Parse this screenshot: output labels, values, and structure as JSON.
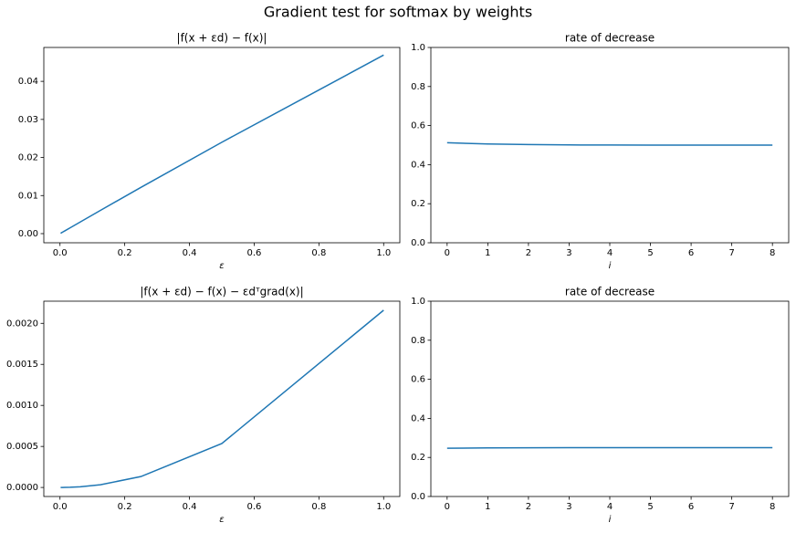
{
  "title": "Gradient test for softmax by weights",
  "chart_data": [
    {
      "type": "line",
      "title": "|f(x + εd) − f(x)|",
      "xlabel": "ε",
      "color": "#1f77b4",
      "x": [
        1,
        0.5,
        0.25,
        0.125,
        0.0625,
        0.03125,
        0.015625,
        0.0078125,
        0.00390625,
        0.001953125
      ],
      "values": [
        0.0469,
        0.024,
        0.01215,
        0.00611,
        0.00306,
        0.00153,
        0.000766,
        0.000383,
        0.000191,
        9.57e-05
      ],
      "xlim": [
        -0.05,
        1.05
      ],
      "xticks": [
        {
          "value": 0,
          "label": "0.0"
        },
        {
          "value": 0.2,
          "label": "0.2"
        },
        {
          "value": 0.4,
          "label": "0.4"
        },
        {
          "value": 0.6,
          "label": "0.6"
        },
        {
          "value": 0.8,
          "label": "0.8"
        },
        {
          "value": 1,
          "label": "1.0"
        }
      ],
      "ylim": [
        -0.0024,
        0.0489
      ],
      "yticks": [
        {
          "value": 0,
          "label": "0.00"
        },
        {
          "value": 0.01,
          "label": "0.01"
        },
        {
          "value": 0.02,
          "label": "0.02"
        },
        {
          "value": 0.03,
          "label": "0.03"
        },
        {
          "value": 0.04,
          "label": "0.04"
        }
      ]
    },
    {
      "type": "line",
      "title": "rate of decrease",
      "xlabel": "i",
      "color": "#1f77b4",
      "x": [
        0,
        1,
        2,
        3,
        4,
        5,
        6,
        7,
        8
      ],
      "values": [
        0.512,
        0.506,
        0.503,
        0.501,
        0.5005,
        0.5,
        0.5,
        0.5,
        0.5
      ],
      "xlim": [
        -0.4,
        8.4
      ],
      "xticks": [
        0,
        1,
        2,
        3,
        4,
        5,
        6,
        7,
        8
      ],
      "ylim": [
        0,
        1
      ],
      "yticks": [
        {
          "value": 0,
          "label": "0.0"
        },
        {
          "value": 0.2,
          "label": "0.2"
        },
        {
          "value": 0.4,
          "label": "0.4"
        },
        {
          "value": 0.6,
          "label": "0.6"
        },
        {
          "value": 0.8,
          "label": "0.8"
        },
        {
          "value": 1,
          "label": "1.0"
        }
      ]
    },
    {
      "type": "line",
      "title": "|f(x + εd) − f(x) − εdᵀgrad(x)|",
      "xlabel": "ε",
      "color": "#1f77b4",
      "x": [
        1,
        0.5,
        0.25,
        0.125,
        0.0625,
        0.03125,
        0.015625,
        0.0078125,
        0.00390625,
        0.001953125
      ],
      "values": [
        0.00216,
        0.000535,
        0.000133,
        3.32e-05,
        8.3e-06,
        2.1e-06,
        5.2e-07,
        1.3e-07,
        3.2e-08,
        8e-09
      ],
      "xlim": [
        -0.05,
        1.05
      ],
      "xticks": [
        {
          "value": 0,
          "label": "0.0"
        },
        {
          "value": 0.2,
          "label": "0.2"
        },
        {
          "value": 0.4,
          "label": "0.4"
        },
        {
          "value": 0.6,
          "label": "0.6"
        },
        {
          "value": 0.8,
          "label": "0.8"
        },
        {
          "value": 1,
          "label": "1.0"
        }
      ],
      "ylim": [
        -0.00011,
        0.00227
      ],
      "yticks": [
        {
          "value": 0,
          "label": "0.0000"
        },
        {
          "value": 0.0005,
          "label": "0.0005"
        },
        {
          "value": 0.001,
          "label": "0.0010"
        },
        {
          "value": 0.0015,
          "label": "0.0015"
        },
        {
          "value": 0.002,
          "label": "0.0020"
        }
      ]
    },
    {
      "type": "line",
      "title": "rate of decrease",
      "xlabel": "i",
      "color": "#1f77b4",
      "x": [
        0,
        1,
        2,
        3,
        4,
        5,
        6,
        7,
        8
      ],
      "values": [
        0.247,
        0.249,
        0.2495,
        0.2498,
        0.25,
        0.25,
        0.25,
        0.25,
        0.25
      ],
      "xlim": [
        -0.4,
        8.4
      ],
      "xticks": [
        0,
        1,
        2,
        3,
        4,
        5,
        6,
        7,
        8
      ],
      "ylim": [
        0,
        1
      ],
      "yticks": [
        {
          "value": 0,
          "label": "0.0"
        },
        {
          "value": 0.2,
          "label": "0.2"
        },
        {
          "value": 0.4,
          "label": "0.4"
        },
        {
          "value": 0.6,
          "label": "0.6"
        },
        {
          "value": 0.8,
          "label": "0.8"
        },
        {
          "value": 1,
          "label": "1.0"
        }
      ]
    }
  ]
}
